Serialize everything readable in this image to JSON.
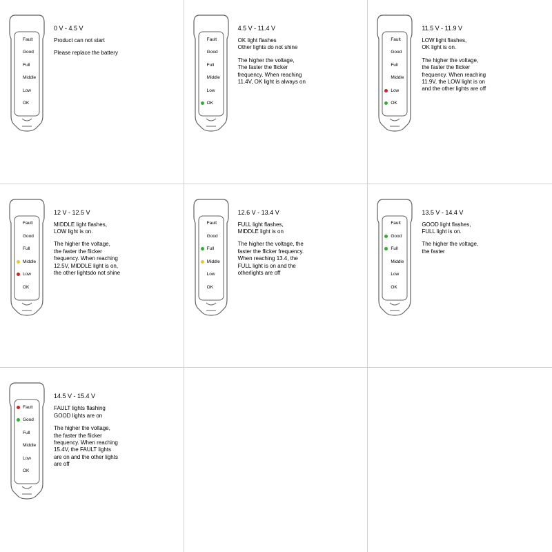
{
  "labels": [
    "Fault",
    "Good",
    "Full",
    "Middle",
    "Low",
    "OK"
  ],
  "colors": {
    "red": "#d62020",
    "green": "#30b030",
    "yellow": "#e6c830",
    "outline": "#606060"
  },
  "cells": [
    {
      "title": "0 V - 4.5 V",
      "summary": "Product can not start",
      "detail": "Please replace the battery",
      "leds": [
        null,
        null,
        null,
        null,
        null,
        null
      ]
    },
    {
      "title": "4.5 V - 11.4 V",
      "summary": "OK light flashes\nOther lights do not shine",
      "detail": "The higher the voltage,\nThe faster the flicker\nfrequency. When reaching\n11.4V, OK light is always on",
      "leds": [
        null,
        null,
        null,
        null,
        null,
        "green"
      ]
    },
    {
      "title": "11.5 V - 11.9 V",
      "summary": "LOW light flashes,\nOK light is on.",
      "detail": "The higher the voltage,\nthe faster the flicker\nfrequency. When reaching\n11.9V, the LOW light is on\nand the other lights are off",
      "leds": [
        null,
        null,
        null,
        null,
        "red",
        "green"
      ]
    },
    {
      "title": "12 V - 12.5 V",
      "summary": "MIDDLE light flashes,\nLOW light is on.",
      "detail": "The higher the voltage,\nthe faster the flicker\nfrequency. When reaching\n12.5V, MIDDLE light is on,\nthe other lightsdo not shine",
      "leds": [
        null,
        null,
        null,
        "yellow",
        "red",
        null
      ]
    },
    {
      "title": "12.6 V - 13.4 V",
      "summary": "FULL light flashes,\nMIDDLE light is on",
      "detail": "The higher the voltage, the\nfaster the flicker frequency.\nWhen reaching 13.4, the\nFULL light is on and the\notherlights are off",
      "leds": [
        null,
        null,
        "green",
        "yellow",
        null,
        null
      ]
    },
    {
      "title": "13.5 V - 14.4 V",
      "summary": "GOOD light flashes,\nFULL light is on.",
      "detail": "The higher the voltage,\nthe faster",
      "leds": [
        null,
        "green",
        "green",
        null,
        null,
        null
      ]
    },
    {
      "title": "14.5 V - 15.4 V",
      "summary": "FAULT lights flashing\nGOOD lights are on",
      "detail": "The higher the voltage,\nthe faster the flicker\nfrequency. When reaching\n15.4V, the FAULT lights\nare on and the other lights\nare off",
      "leds": [
        "red",
        "green",
        null,
        null,
        null,
        null
      ]
    },
    {
      "empty": true
    },
    {
      "empty": true
    }
  ]
}
